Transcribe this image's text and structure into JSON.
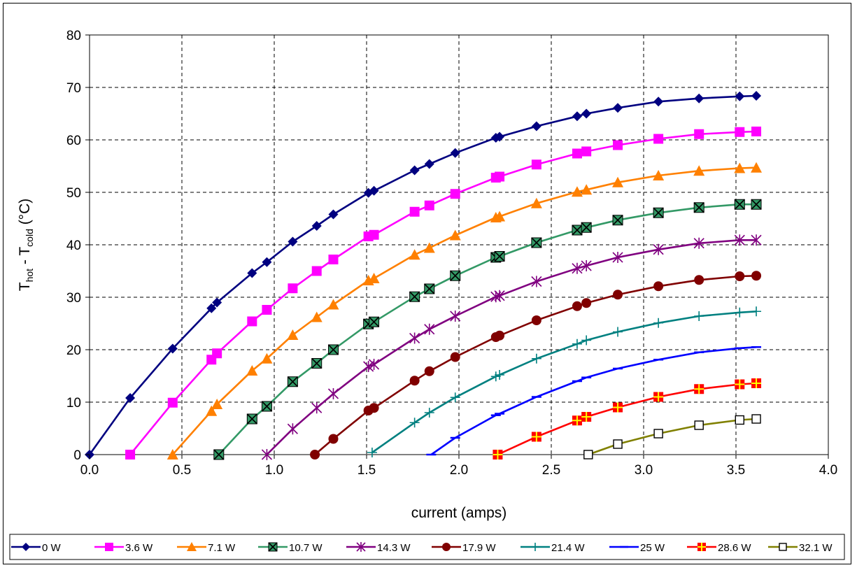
{
  "chart_data": {
    "type": "line",
    "title": "",
    "xlabel": "current (amps)",
    "ylabel": {
      "parts": [
        {
          "text": "T",
          "sub": false
        },
        {
          "text": "hot",
          "sub": true
        },
        {
          "text": " - T",
          "sub": false
        },
        {
          "text": "cold",
          "sub": true
        },
        {
          "text": " (°C)",
          "sub": false
        }
      ]
    },
    "xlim": [
      0,
      4
    ],
    "ylim": [
      0,
      80
    ],
    "x_ticks": [
      "0.0",
      "0.5",
      "1.0",
      "1.5",
      "2.0",
      "2.5",
      "3.0",
      "3.5",
      "4.0"
    ],
    "y_ticks": [
      "0",
      "10",
      "20",
      "30",
      "40",
      "50",
      "60",
      "70",
      "80"
    ],
    "grid": true,
    "legend_position": "bottom",
    "series": [
      {
        "name": "0 W",
        "color": "#000080",
        "marker": "diamond",
        "points": [
          [
            0.0,
            0.0
          ],
          [
            0.22,
            10.8
          ],
          [
            0.45,
            20.2
          ],
          [
            0.66,
            27.9
          ],
          [
            0.69,
            29.0
          ],
          [
            0.88,
            34.6
          ],
          [
            0.96,
            36.7
          ],
          [
            1.1,
            40.6
          ],
          [
            1.23,
            43.6
          ],
          [
            1.32,
            45.8
          ],
          [
            1.51,
            49.9
          ],
          [
            1.54,
            50.3
          ],
          [
            1.76,
            54.2
          ],
          [
            1.84,
            55.4
          ],
          [
            1.98,
            57.5
          ],
          [
            2.2,
            60.4
          ],
          [
            2.22,
            60.6
          ],
          [
            2.42,
            62.6
          ],
          [
            2.64,
            64.5
          ],
          [
            2.69,
            65.0
          ],
          [
            2.86,
            66.1
          ],
          [
            3.08,
            67.3
          ],
          [
            3.3,
            67.9
          ],
          [
            3.52,
            68.3
          ],
          [
            3.61,
            68.4
          ]
        ]
      },
      {
        "name": "3.6 W",
        "color": "#FF00FF",
        "marker": "square",
        "points": [
          [
            0.22,
            0.0
          ],
          [
            0.45,
            9.9
          ],
          [
            0.66,
            18.1
          ],
          [
            0.69,
            19.3
          ],
          [
            0.88,
            25.4
          ],
          [
            0.96,
            27.6
          ],
          [
            1.1,
            31.7
          ],
          [
            1.23,
            35.0
          ],
          [
            1.32,
            37.2
          ],
          [
            1.51,
            41.6
          ],
          [
            1.54,
            41.9
          ],
          [
            1.76,
            46.3
          ],
          [
            1.84,
            47.5
          ],
          [
            1.98,
            49.7
          ],
          [
            2.2,
            52.8
          ],
          [
            2.22,
            53.0
          ],
          [
            2.42,
            55.3
          ],
          [
            2.64,
            57.4
          ],
          [
            2.69,
            57.8
          ],
          [
            2.86,
            59.0
          ],
          [
            3.08,
            60.2
          ],
          [
            3.3,
            61.1
          ],
          [
            3.52,
            61.5
          ],
          [
            3.61,
            61.6
          ]
        ]
      },
      {
        "name": "7.1 W",
        "color": "#FF8000",
        "marker": "triangle",
        "points": [
          [
            0.45,
            0.0
          ],
          [
            0.66,
            8.3
          ],
          [
            0.69,
            9.6
          ],
          [
            0.88,
            16.0
          ],
          [
            0.96,
            18.3
          ],
          [
            1.1,
            22.8
          ],
          [
            1.23,
            26.2
          ],
          [
            1.32,
            28.6
          ],
          [
            1.51,
            33.2
          ],
          [
            1.54,
            33.6
          ],
          [
            1.76,
            38.1
          ],
          [
            1.84,
            39.4
          ],
          [
            1.98,
            41.8
          ],
          [
            2.2,
            45.2
          ],
          [
            2.22,
            45.4
          ],
          [
            2.42,
            47.9
          ],
          [
            2.64,
            50.1
          ],
          [
            2.69,
            50.5
          ],
          [
            2.86,
            51.9
          ],
          [
            3.08,
            53.2
          ],
          [
            3.3,
            54.1
          ],
          [
            3.52,
            54.6
          ],
          [
            3.61,
            54.7
          ]
        ]
      },
      {
        "name": "10.7 W",
        "color": "#339966",
        "marker": "xsquare",
        "points": [
          [
            0.7,
            0.0
          ],
          [
            0.88,
            6.8
          ],
          [
            0.96,
            9.2
          ],
          [
            1.1,
            13.9
          ],
          [
            1.23,
            17.4
          ],
          [
            1.32,
            20.0
          ],
          [
            1.51,
            24.9
          ],
          [
            1.54,
            25.3
          ],
          [
            1.76,
            30.1
          ],
          [
            1.84,
            31.6
          ],
          [
            1.98,
            34.1
          ],
          [
            2.2,
            37.6
          ],
          [
            2.22,
            37.8
          ],
          [
            2.42,
            40.4
          ],
          [
            2.64,
            42.8
          ],
          [
            2.69,
            43.3
          ],
          [
            2.86,
            44.7
          ],
          [
            3.08,
            46.1
          ],
          [
            3.3,
            47.1
          ],
          [
            3.52,
            47.7
          ],
          [
            3.61,
            47.7
          ]
        ]
      },
      {
        "name": "14.3 W",
        "color": "#800080",
        "marker": "star",
        "points": [
          [
            0.96,
            0.0
          ],
          [
            1.1,
            4.9
          ],
          [
            1.23,
            8.9
          ],
          [
            1.32,
            11.6
          ],
          [
            1.51,
            16.8
          ],
          [
            1.54,
            17.2
          ],
          [
            1.76,
            22.2
          ],
          [
            1.84,
            23.9
          ],
          [
            1.98,
            26.4
          ],
          [
            2.2,
            30.1
          ],
          [
            2.22,
            30.3
          ],
          [
            2.42,
            33.0
          ],
          [
            2.64,
            35.5
          ],
          [
            2.69,
            36.0
          ],
          [
            2.86,
            37.6
          ],
          [
            3.08,
            39.1
          ],
          [
            3.3,
            40.3
          ],
          [
            3.52,
            40.9
          ],
          [
            3.61,
            40.9
          ]
        ]
      },
      {
        "name": "17.9 W",
        "color": "#800000",
        "marker": "circle",
        "points": [
          [
            1.22,
            0.0
          ],
          [
            1.32,
            3.0
          ],
          [
            1.51,
            8.4
          ],
          [
            1.54,
            8.9
          ],
          [
            1.76,
            14.1
          ],
          [
            1.84,
            15.9
          ],
          [
            1.98,
            18.6
          ],
          [
            2.2,
            22.4
          ],
          [
            2.22,
            22.7
          ],
          [
            2.42,
            25.6
          ],
          [
            2.64,
            28.3
          ],
          [
            2.69,
            28.9
          ],
          [
            2.86,
            30.5
          ],
          [
            3.08,
            32.1
          ],
          [
            3.3,
            33.3
          ],
          [
            3.52,
            34.0
          ],
          [
            3.61,
            34.1
          ]
        ]
      },
      {
        "name": "21.4 W",
        "color": "#008080",
        "marker": "plus",
        "points": [
          [
            1.53,
            0.4
          ],
          [
            1.76,
            6.1
          ],
          [
            1.84,
            8.0
          ],
          [
            1.98,
            10.9
          ],
          [
            2.2,
            14.9
          ],
          [
            2.22,
            15.2
          ],
          [
            2.42,
            18.3
          ],
          [
            2.64,
            21.1
          ],
          [
            2.69,
            21.8
          ],
          [
            2.86,
            23.4
          ],
          [
            3.08,
            25.1
          ],
          [
            3.3,
            26.4
          ],
          [
            3.52,
            27.1
          ],
          [
            3.61,
            27.3
          ]
        ]
      },
      {
        "name": "25 W",
        "color": "#0000FF",
        "marker": "dash",
        "points": [
          [
            1.85,
            0.0
          ],
          [
            1.98,
            3.2
          ],
          [
            2.2,
            7.5
          ],
          [
            2.22,
            7.8
          ],
          [
            2.42,
            11.0
          ],
          [
            2.64,
            14.0
          ],
          [
            2.69,
            14.7
          ],
          [
            2.86,
            16.4
          ],
          [
            3.08,
            18.1
          ],
          [
            3.3,
            19.5
          ],
          [
            3.52,
            20.3
          ],
          [
            3.61,
            20.5
          ]
        ]
      },
      {
        "name": "28.6 W",
        "color": "#FF0000",
        "marker": "plussquare",
        "points": [
          [
            2.21,
            0.0
          ],
          [
            2.42,
            3.4
          ],
          [
            2.64,
            6.5
          ],
          [
            2.69,
            7.2
          ],
          [
            2.86,
            9.0
          ],
          [
            3.08,
            11.0
          ],
          [
            3.3,
            12.5
          ],
          [
            3.52,
            13.4
          ],
          [
            3.61,
            13.6
          ]
        ]
      },
      {
        "name": "32.1 W",
        "color": "#808000",
        "marker": "opensquare",
        "points": [
          [
            2.7,
            0.0
          ],
          [
            2.86,
            2.0
          ],
          [
            3.08,
            4.0
          ],
          [
            3.3,
            5.6
          ],
          [
            3.52,
            6.6
          ],
          [
            3.61,
            6.8
          ]
        ]
      }
    ]
  }
}
